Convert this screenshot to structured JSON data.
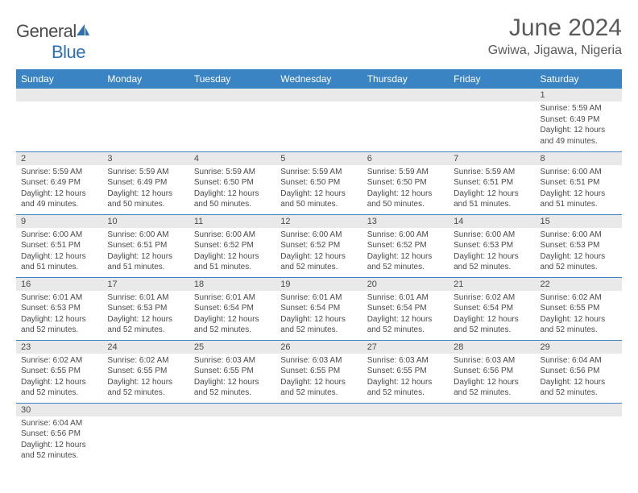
{
  "logo": {
    "text_general": "General",
    "text_blue": "Blue"
  },
  "title": "June 2024",
  "location": "Gwiwa, Jigawa, Nigeria",
  "colors": {
    "header_bg": "#3b84c4",
    "header_fg": "#ffffff",
    "row_divider": "#3b84c4",
    "daynum_bg": "#e9e9e9",
    "text": "#4a4a4a",
    "logo_blue": "#2e6fb0"
  },
  "weekdays": [
    "Sunday",
    "Monday",
    "Tuesday",
    "Wednesday",
    "Thursday",
    "Friday",
    "Saturday"
  ],
  "weeks": [
    [
      null,
      null,
      null,
      null,
      null,
      null,
      {
        "n": "1",
        "sr": "5:59 AM",
        "ss": "6:49 PM",
        "dl": "12 hours and 49 minutes."
      }
    ],
    [
      {
        "n": "2",
        "sr": "5:59 AM",
        "ss": "6:49 PM",
        "dl": "12 hours and 49 minutes."
      },
      {
        "n": "3",
        "sr": "5:59 AM",
        "ss": "6:49 PM",
        "dl": "12 hours and 50 minutes."
      },
      {
        "n": "4",
        "sr": "5:59 AM",
        "ss": "6:50 PM",
        "dl": "12 hours and 50 minutes."
      },
      {
        "n": "5",
        "sr": "5:59 AM",
        "ss": "6:50 PM",
        "dl": "12 hours and 50 minutes."
      },
      {
        "n": "6",
        "sr": "5:59 AM",
        "ss": "6:50 PM",
        "dl": "12 hours and 50 minutes."
      },
      {
        "n": "7",
        "sr": "5:59 AM",
        "ss": "6:51 PM",
        "dl": "12 hours and 51 minutes."
      },
      {
        "n": "8",
        "sr": "6:00 AM",
        "ss": "6:51 PM",
        "dl": "12 hours and 51 minutes."
      }
    ],
    [
      {
        "n": "9",
        "sr": "6:00 AM",
        "ss": "6:51 PM",
        "dl": "12 hours and 51 minutes."
      },
      {
        "n": "10",
        "sr": "6:00 AM",
        "ss": "6:51 PM",
        "dl": "12 hours and 51 minutes."
      },
      {
        "n": "11",
        "sr": "6:00 AM",
        "ss": "6:52 PM",
        "dl": "12 hours and 51 minutes."
      },
      {
        "n": "12",
        "sr": "6:00 AM",
        "ss": "6:52 PM",
        "dl": "12 hours and 52 minutes."
      },
      {
        "n": "13",
        "sr": "6:00 AM",
        "ss": "6:52 PM",
        "dl": "12 hours and 52 minutes."
      },
      {
        "n": "14",
        "sr": "6:00 AM",
        "ss": "6:53 PM",
        "dl": "12 hours and 52 minutes."
      },
      {
        "n": "15",
        "sr": "6:00 AM",
        "ss": "6:53 PM",
        "dl": "12 hours and 52 minutes."
      }
    ],
    [
      {
        "n": "16",
        "sr": "6:01 AM",
        "ss": "6:53 PM",
        "dl": "12 hours and 52 minutes."
      },
      {
        "n": "17",
        "sr": "6:01 AM",
        "ss": "6:53 PM",
        "dl": "12 hours and 52 minutes."
      },
      {
        "n": "18",
        "sr": "6:01 AM",
        "ss": "6:54 PM",
        "dl": "12 hours and 52 minutes."
      },
      {
        "n": "19",
        "sr": "6:01 AM",
        "ss": "6:54 PM",
        "dl": "12 hours and 52 minutes."
      },
      {
        "n": "20",
        "sr": "6:01 AM",
        "ss": "6:54 PM",
        "dl": "12 hours and 52 minutes."
      },
      {
        "n": "21",
        "sr": "6:02 AM",
        "ss": "6:54 PM",
        "dl": "12 hours and 52 minutes."
      },
      {
        "n": "22",
        "sr": "6:02 AM",
        "ss": "6:55 PM",
        "dl": "12 hours and 52 minutes."
      }
    ],
    [
      {
        "n": "23",
        "sr": "6:02 AM",
        "ss": "6:55 PM",
        "dl": "12 hours and 52 minutes."
      },
      {
        "n": "24",
        "sr": "6:02 AM",
        "ss": "6:55 PM",
        "dl": "12 hours and 52 minutes."
      },
      {
        "n": "25",
        "sr": "6:03 AM",
        "ss": "6:55 PM",
        "dl": "12 hours and 52 minutes."
      },
      {
        "n": "26",
        "sr": "6:03 AM",
        "ss": "6:55 PM",
        "dl": "12 hours and 52 minutes."
      },
      {
        "n": "27",
        "sr": "6:03 AM",
        "ss": "6:55 PM",
        "dl": "12 hours and 52 minutes."
      },
      {
        "n": "28",
        "sr": "6:03 AM",
        "ss": "6:56 PM",
        "dl": "12 hours and 52 minutes."
      },
      {
        "n": "29",
        "sr": "6:04 AM",
        "ss": "6:56 PM",
        "dl": "12 hours and 52 minutes."
      }
    ],
    [
      {
        "n": "30",
        "sr": "6:04 AM",
        "ss": "6:56 PM",
        "dl": "12 hours and 52 minutes."
      },
      null,
      null,
      null,
      null,
      null,
      null
    ]
  ],
  "labels": {
    "sunrise": "Sunrise:",
    "sunset": "Sunset:",
    "daylight": "Daylight:"
  }
}
